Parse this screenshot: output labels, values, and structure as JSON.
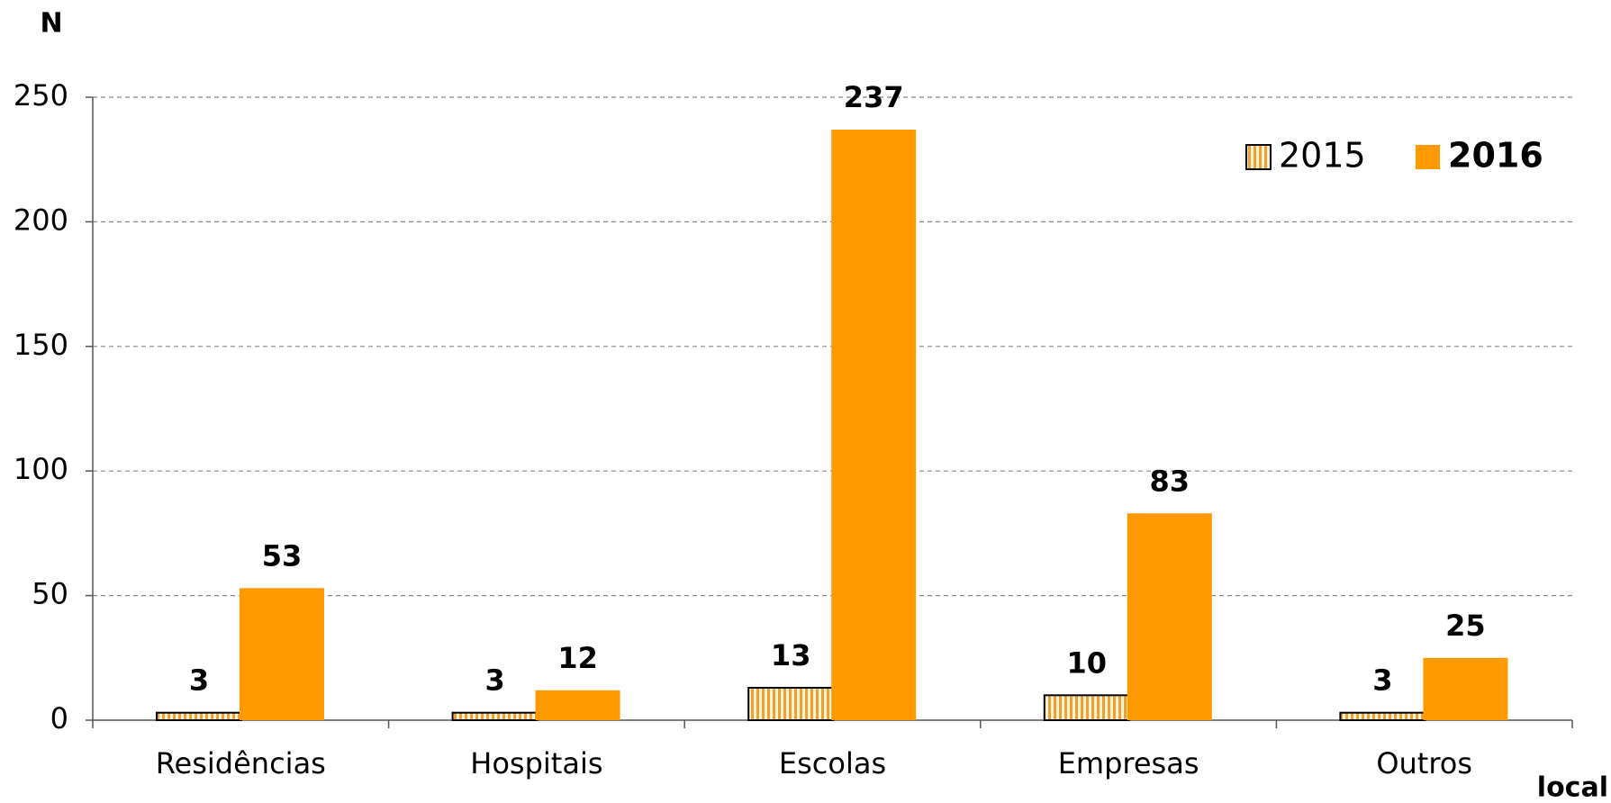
{
  "chart_data": {
    "type": "bar",
    "y_label": "N",
    "x_label": "local",
    "categories": [
      "Residências",
      "Hospitais",
      "Escolas",
      "Empresas",
      "Outros"
    ],
    "series": [
      {
        "name": "2015",
        "color": "#f0a030",
        "pattern": "hatch",
        "values": [
          3,
          3,
          13,
          10,
          3
        ]
      },
      {
        "name": "2016",
        "color": "#ff9900",
        "values": [
          53,
          12,
          237,
          83,
          25
        ]
      }
    ],
    "ylim": [
      0,
      250
    ],
    "yticks": [
      0,
      50,
      100,
      150,
      200,
      250
    ],
    "grid": true,
    "legend": "top-right"
  }
}
